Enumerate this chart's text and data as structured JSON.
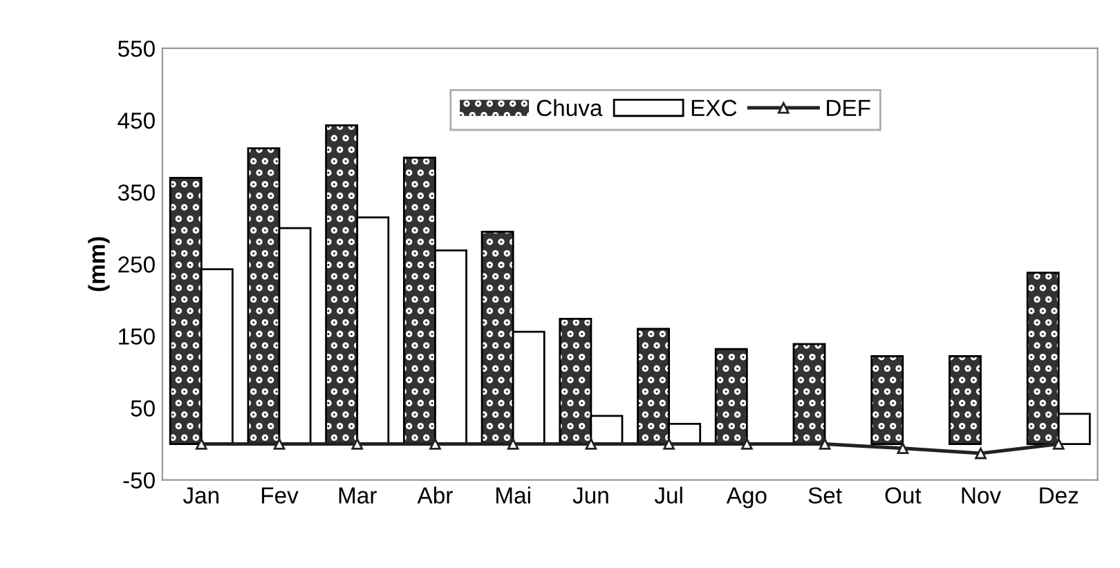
{
  "chart_data": {
    "type": "bar",
    "ylabel": "(mm)",
    "categories": [
      "Jan",
      "Fev",
      "Mar",
      "Abr",
      "Mai",
      "Jun",
      "Jul",
      "Ago",
      "Set",
      "Out",
      "Nov",
      "Dez"
    ],
    "series": [
      {
        "name": "Chuva",
        "color": "#333333",
        "values": [
          370,
          411,
          443,
          398,
          295,
          174,
          160,
          132,
          139,
          122,
          122,
          238
        ]
      },
      {
        "name": "EXC",
        "color": "#ffffff",
        "values": [
          243,
          300,
          315,
          269,
          156,
          39,
          28,
          null,
          null,
          null,
          null,
          42
        ]
      },
      {
        "name": "DEF",
        "type": "line",
        "color": "#222222",
        "marker": "triangle",
        "values": [
          0,
          0,
          0,
          0,
          0,
          0,
          0,
          0,
          0,
          -6,
          -13,
          0
        ]
      }
    ],
    "ylim": [
      -50,
      550
    ],
    "yticks": [
      -50,
      50,
      150,
      250,
      350,
      450,
      550
    ],
    "grid": false,
    "legend": "top right"
  }
}
